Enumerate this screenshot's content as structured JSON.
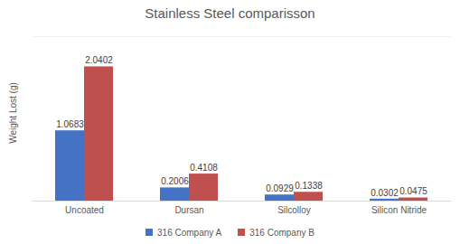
{
  "chart_data": {
    "type": "bar",
    "title": "Stainless Steel comparisson",
    "y_label": "Weight Lost (g)",
    "categories": [
      "Uncoated",
      "Dursan",
      "Silcolloy",
      "Silicon Nitride"
    ],
    "series": [
      {
        "name": "316 Company A",
        "color": "#4472c4",
        "values": [
          1.0683,
          0.2006,
          0.0929,
          0.0302
        ]
      },
      {
        "name": "316 Company B",
        "color": "#c0504d",
        "values": [
          2.0402,
          0.4108,
          0.1338,
          0.0475
        ]
      }
    ],
    "ylim": [
      0,
      2.5
    ],
    "tick_labels": "x",
    "grid": false,
    "data_labels": true,
    "legend": "bottom"
  }
}
